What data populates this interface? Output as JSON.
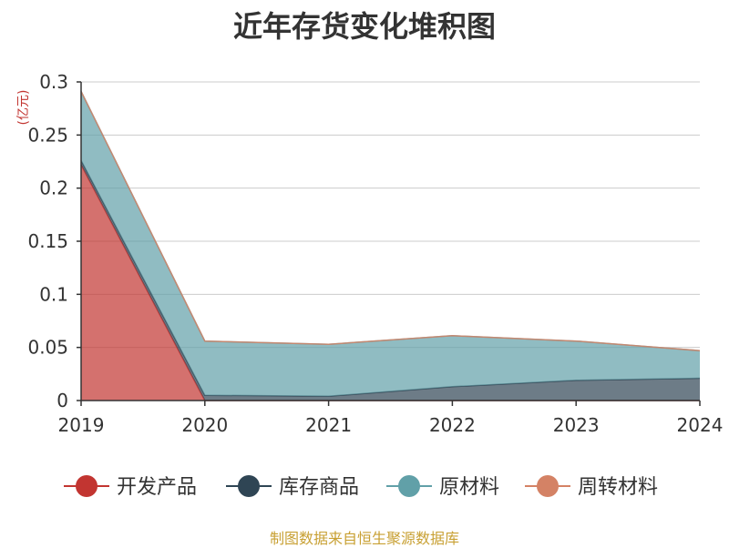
{
  "title": "近年存货变化堆积图",
  "source": "制图数据来自恒生聚源数据库",
  "chart_data": {
    "type": "area",
    "stacked": true,
    "title": "近年存货变化堆积图",
    "ylabel": "(亿元)",
    "categories": [
      "2019",
      "2020",
      "2021",
      "2022",
      "2023",
      "2024"
    ],
    "ylim": [
      0,
      0.3
    ],
    "yticks": [
      "0",
      "0.05",
      "0.1",
      "0.15",
      "0.2",
      "0.25",
      "0.3"
    ],
    "grid": true,
    "legend_position": "bottom",
    "series": [
      {
        "name": "开发产品",
        "color": "#c23531",
        "values": [
          0.222,
          0,
          0,
          0,
          0,
          0
        ]
      },
      {
        "name": "库存商品",
        "color": "#2f4554",
        "values": [
          0.004,
          0.005,
          0.004,
          0.013,
          0.019,
          0.021
        ]
      },
      {
        "name": "原材料",
        "color": "#61a0a8",
        "values": [
          0.065,
          0.051,
          0.049,
          0.048,
          0.037,
          0.026
        ]
      },
      {
        "name": "周转材料",
        "color": "#d48265",
        "values": [
          0,
          0,
          0,
          0,
          0,
          0
        ]
      }
    ]
  }
}
